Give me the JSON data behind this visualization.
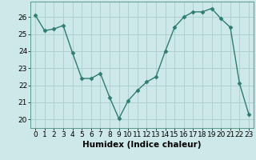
{
  "x": [
    0,
    1,
    2,
    3,
    4,
    5,
    6,
    7,
    8,
    9,
    10,
    11,
    12,
    13,
    14,
    15,
    16,
    17,
    18,
    19,
    20,
    21,
    22,
    23
  ],
  "y": [
    26.1,
    25.2,
    25.3,
    25.5,
    23.9,
    22.4,
    22.4,
    22.7,
    21.3,
    20.05,
    21.1,
    21.7,
    22.2,
    22.5,
    24.0,
    25.4,
    26.0,
    26.3,
    26.3,
    26.5,
    25.9,
    25.4,
    22.1,
    20.3
  ],
  "line_color": "#2e7d6e",
  "marker": "D",
  "marker_size": 2.5,
  "xlabel": "Humidex (Indice chaleur)",
  "ylim": [
    19.5,
    26.9
  ],
  "xlim": [
    -0.5,
    23.5
  ],
  "yticks": [
    20,
    21,
    22,
    23,
    24,
    25,
    26
  ],
  "xticks": [
    0,
    1,
    2,
    3,
    4,
    5,
    6,
    7,
    8,
    9,
    10,
    11,
    12,
    13,
    14,
    15,
    16,
    17,
    18,
    19,
    20,
    21,
    22,
    23
  ],
  "bg_color": "#cde8e8",
  "grid_color": "#b0cfcf",
  "spine_color": "#5a9a8a",
  "tick_fontsize": 6.5,
  "xlabel_fontsize": 7.5
}
